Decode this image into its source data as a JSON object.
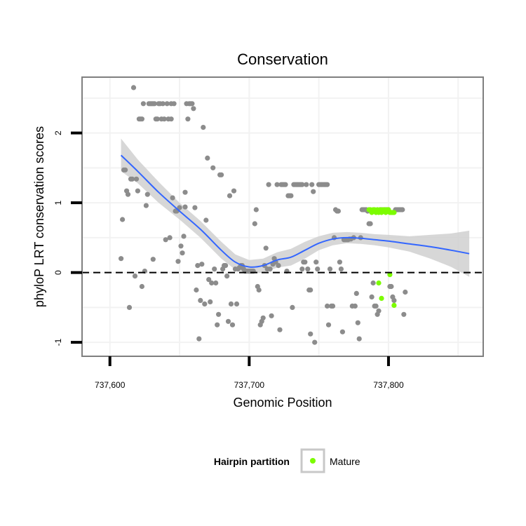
{
  "chart_data": {
    "type": "scatter",
    "title": "Conservation",
    "xlabel": "Genomic Position",
    "ylabel": "phyloP LRT conservation scores",
    "xlim": [
      737580,
      737868
    ],
    "ylim": [
      -1.2,
      2.8
    ],
    "x_ticks": [
      737600,
      737700,
      737800
    ],
    "x_tick_labels": [
      "737,600",
      "737,700",
      "737,800"
    ],
    "y_ticks": [
      -1,
      0,
      1,
      2
    ],
    "y_tick_labels": [
      "-1",
      "0",
      "1",
      "2"
    ],
    "reference_line": {
      "y": 0,
      "style": "dashed"
    },
    "grid": true,
    "legend": {
      "title": "Hairpin partition",
      "position": "bottom",
      "entries": [
        "Mature"
      ]
    },
    "colors": {
      "points": "#8c8c8c",
      "mature": "#7cfc00",
      "smooth": "#3366ff",
      "ribbon": "#d0d0d0",
      "panel_border": "#7f7f7f"
    },
    "series": [
      {
        "name": "",
        "color": "#8c8c8c",
        "points": [
          [
            737608,
            0.2
          ],
          [
            737609,
            0.76
          ],
          [
            737610,
            1.47
          ],
          [
            737611,
            1.47
          ],
          [
            737612,
            1.17
          ],
          [
            737613,
            1.12
          ],
          [
            737614,
            -0.5
          ],
          [
            737615,
            1.34
          ],
          [
            737616,
            1.34
          ],
          [
            737617,
            2.65
          ],
          [
            737618,
            -0.05
          ],
          [
            737619,
            1.34
          ],
          [
            737620,
            1.17
          ],
          [
            737621,
            2.2
          ],
          [
            737622,
            2.2
          ],
          [
            737623,
            2.2
          ],
          [
            737623,
            -0.2
          ],
          [
            737624,
            2.42
          ],
          [
            737625,
            0.02
          ],
          [
            737626,
            0.96
          ],
          [
            737627,
            1.12
          ],
          [
            737628,
            2.42
          ],
          [
            737629,
            2.42
          ],
          [
            737630,
            2.42
          ],
          [
            737631,
            2.42
          ],
          [
            737631,
            0.19
          ],
          [
            737632,
            2.42
          ],
          [
            737633,
            2.2
          ],
          [
            737634,
            2.2
          ],
          [
            737635,
            2.42
          ],
          [
            737636,
            2.42
          ],
          [
            737637,
            2.2
          ],
          [
            737638,
            2.42
          ],
          [
            737639,
            2.2
          ],
          [
            737640,
            0.47
          ],
          [
            737641,
            2.42
          ],
          [
            737642,
            2.2
          ],
          [
            737643,
            0.5
          ],
          [
            737644,
            2.42
          ],
          [
            737644,
            2.2
          ],
          [
            737645,
            1.07
          ],
          [
            737646,
            2.42
          ],
          [
            737647,
            0.88
          ],
          [
            737648,
            0.88
          ],
          [
            737649,
            0.16
          ],
          [
            737650,
            0.93
          ],
          [
            737651,
            0.38
          ],
          [
            737652,
            0.28
          ],
          [
            737653,
            0.52
          ],
          [
            737654,
            1.15
          ],
          [
            737654,
            0.94
          ],
          [
            737655,
            2.42
          ],
          [
            737656,
            2.2
          ],
          [
            737657,
            2.42
          ],
          [
            737658,
            2.42
          ],
          [
            737659,
            2.42
          ],
          [
            737660,
            2.35
          ],
          [
            737661,
            0.93
          ],
          [
            737662,
            -0.25
          ],
          [
            737663,
            0.1
          ],
          [
            737664,
            -0.95
          ],
          [
            737665,
            -0.4
          ],
          [
            737666,
            0.12
          ],
          [
            737667,
            2.08
          ],
          [
            737668,
            -0.45
          ],
          [
            737669,
            0.75
          ],
          [
            737670,
            1.64
          ],
          [
            737671,
            -0.1
          ],
          [
            737672,
            -0.42
          ],
          [
            737673,
            -0.15
          ],
          [
            737674,
            1.5
          ],
          [
            737675,
            0.05
          ],
          [
            737676,
            -0.15
          ],
          [
            737677,
            -0.75
          ],
          [
            737678,
            -0.6
          ],
          [
            737679,
            1.4
          ],
          [
            737680,
            1.4
          ],
          [
            737681,
            0.05
          ],
          [
            737682,
            0.1
          ],
          [
            737683,
            0.1
          ],
          [
            737684,
            -0.05
          ],
          [
            737685,
            -0.7
          ],
          [
            737686,
            1.1
          ],
          [
            737687,
            -0.45
          ],
          [
            737688,
            -0.75
          ],
          [
            737689,
            1.17
          ],
          [
            737690,
            0.05
          ],
          [
            737691,
            -0.45
          ],
          [
            737692,
            0.05
          ],
          [
            737693,
            0.07
          ],
          [
            737694,
            0.1
          ],
          [
            737695,
            0.1
          ],
          [
            737696,
            0.05
          ],
          [
            737697,
            0.02
          ],
          [
            737698,
            0.02
          ],
          [
            737699,
            0.02
          ],
          [
            737700,
            0.02
          ],
          [
            737701,
            0.02
          ],
          [
            737702,
            0.02
          ],
          [
            737703,
            0.02
          ],
          [
            737704,
            0.7
          ],
          [
            737705,
            0.9
          ],
          [
            737706,
            -0.2
          ],
          [
            737707,
            -0.25
          ],
          [
            737708,
            -0.75
          ],
          [
            737709,
            -0.7
          ],
          [
            737710,
            -0.65
          ],
          [
            737711,
            0.1
          ],
          [
            737712,
            0.35
          ],
          [
            737713,
            0.05
          ],
          [
            737714,
            1.26
          ],
          [
            737715,
            0.05
          ],
          [
            737716,
            -0.62
          ],
          [
            737717,
            0.12
          ],
          [
            737718,
            0.2
          ],
          [
            737719,
            0.15
          ],
          [
            737720,
            1.26
          ],
          [
            737721,
            0.1
          ],
          [
            737722,
            -0.82
          ],
          [
            737723,
            1.26
          ],
          [
            737724,
            1.26
          ],
          [
            737725,
            1.26
          ],
          [
            737726,
            1.26
          ],
          [
            737727,
            0.02
          ],
          [
            737728,
            1.1
          ],
          [
            737729,
            1.1
          ],
          [
            737730,
            1.1
          ],
          [
            737731,
            -0.5
          ],
          [
            737732,
            1.26
          ],
          [
            737733,
            1.26
          ],
          [
            737734,
            1.26
          ],
          [
            737735,
            1.26
          ],
          [
            737736,
            1.26
          ],
          [
            737737,
            1.26
          ],
          [
            737738,
            1.26
          ],
          [
            737738,
            0.05
          ],
          [
            737739,
            0.15
          ],
          [
            737740,
            0.15
          ],
          [
            737741,
            1.26
          ],
          [
            737742,
            0.05
          ],
          [
            737743,
            -0.25
          ],
          [
            737744,
            -0.25
          ],
          [
            737744,
            -0.88
          ],
          [
            737745,
            1.26
          ],
          [
            737746,
            1.16
          ],
          [
            737747,
            -1.0
          ],
          [
            737748,
            0.15
          ],
          [
            737749,
            0.05
          ],
          [
            737750,
            1.26
          ],
          [
            737751,
            1.26
          ],
          [
            737752,
            1.26
          ],
          [
            737753,
            1.26
          ],
          [
            737754,
            1.26
          ],
          [
            737755,
            1.26
          ],
          [
            737756,
            1.26
          ],
          [
            737756,
            -0.48
          ],
          [
            737757,
            -0.75
          ],
          [
            737758,
            0.05
          ],
          [
            737759,
            -0.48
          ],
          [
            737760,
            -0.48
          ],
          [
            737761,
            0.5
          ],
          [
            737762,
            0.9
          ],
          [
            737763,
            0.88
          ],
          [
            737764,
            0.88
          ],
          [
            737765,
            0.15
          ],
          [
            737766,
            0.05
          ],
          [
            737767,
            -0.85
          ],
          [
            737768,
            0.47
          ],
          [
            737769,
            0.47
          ],
          [
            737770,
            0.47
          ],
          [
            737771,
            0.47
          ],
          [
            737772,
            0.48
          ],
          [
            737773,
            0.48
          ],
          [
            737774,
            -0.48
          ],
          [
            737775,
            0.5
          ],
          [
            737776,
            -0.48
          ],
          [
            737777,
            -0.3
          ],
          [
            737778,
            -0.72
          ],
          [
            737779,
            -0.95
          ],
          [
            737780,
            0.5
          ],
          [
            737781,
            0.9
          ],
          [
            737782,
            0.9
          ],
          [
            737783,
            0.9
          ],
          [
            737784,
            0.9
          ],
          [
            737785,
            0.88
          ],
          [
            737786,
            0.7
          ],
          [
            737787,
            0.7
          ],
          [
            737788,
            -0.35
          ],
          [
            737789,
            -0.15
          ],
          [
            737790,
            -0.48
          ],
          [
            737791,
            -0.48
          ],
          [
            737792,
            -0.6
          ],
          [
            737793,
            -0.55
          ],
          [
            737794,
            0.9
          ],
          [
            737795,
            0.9
          ],
          [
            737796,
            0.88
          ],
          [
            737797,
            0.9
          ],
          [
            737798,
            0.9
          ],
          [
            737799,
            0.9
          ],
          [
            737800,
            0.9
          ],
          [
            737801,
            -0.2
          ],
          [
            737802,
            -0.2
          ],
          [
            737803,
            -0.35
          ],
          [
            737804,
            -0.4
          ],
          [
            737805,
            0.9
          ],
          [
            737806,
            0.9
          ],
          [
            737807,
            0.9
          ],
          [
            737808,
            0.9
          ],
          [
            737809,
            0.9
          ],
          [
            737810,
            0.9
          ],
          [
            737811,
            -0.6
          ],
          [
            737812,
            -0.28
          ]
        ]
      },
      {
        "name": "Mature",
        "color": "#7cfc00",
        "points": [
          [
            737786,
            0.9
          ],
          [
            737787,
            0.9
          ],
          [
            737788,
            0.86
          ],
          [
            737789,
            0.9
          ],
          [
            737790,
            0.9
          ],
          [
            737791,
            0.86
          ],
          [
            737792,
            0.9
          ],
          [
            737793,
            0.86
          ],
          [
            737794,
            0.9
          ],
          [
            737795,
            0.86
          ],
          [
            737796,
            0.9
          ],
          [
            737797,
            0.9
          ],
          [
            737798,
            0.86
          ],
          [
            737799,
            0.9
          ],
          [
            737800,
            0.9
          ],
          [
            737801,
            0.86
          ],
          [
            737802,
            0.86
          ],
          [
            737803,
            0.86
          ],
          [
            737804,
            0.86
          ],
          [
            737793,
            -0.15
          ],
          [
            737795,
            -0.37
          ],
          [
            737801,
            -0.03
          ],
          [
            737804,
            -0.47
          ]
        ]
      }
    ],
    "smooth": {
      "x": [
        737608,
        737620,
        737635,
        737650,
        737665,
        737680,
        737690,
        737700,
        737710,
        737720,
        737730,
        737740,
        737750,
        737760,
        737770,
        737780,
        737790,
        737800,
        737815,
        737830,
        737845,
        737858
      ],
      "y": [
        1.68,
        1.45,
        1.15,
        0.88,
        0.62,
        0.32,
        0.15,
        0.08,
        0.1,
        0.18,
        0.22,
        0.32,
        0.42,
        0.48,
        0.5,
        0.49,
        0.47,
        0.45,
        0.41,
        0.37,
        0.32,
        0.27
      ],
      "lower": [
        1.45,
        1.28,
        1.0,
        0.76,
        0.5,
        0.2,
        0.04,
        -0.02,
        0.0,
        0.07,
        0.1,
        0.2,
        0.32,
        0.39,
        0.42,
        0.41,
        0.39,
        0.36,
        0.3,
        0.2,
        0.08,
        -0.06
      ],
      "upper": [
        1.92,
        1.62,
        1.3,
        1.0,
        0.74,
        0.44,
        0.26,
        0.18,
        0.2,
        0.29,
        0.34,
        0.44,
        0.52,
        0.57,
        0.58,
        0.57,
        0.55,
        0.54,
        0.52,
        0.54,
        0.56,
        0.6
      ]
    }
  }
}
